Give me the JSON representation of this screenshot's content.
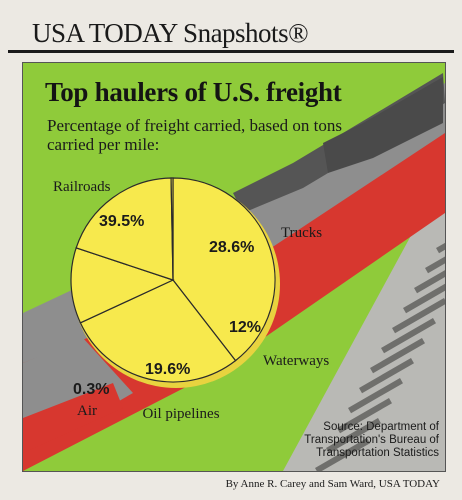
{
  "header": {
    "title": "USA TODAY Snapshots®"
  },
  "chart_data": {
    "type": "pie",
    "title": "Top haulers of U.S. freight",
    "subtitle": "Percentage of freight carried, based on tons carried per mile:",
    "slices": [
      {
        "label": "Railroads",
        "value": 39.5,
        "display": "39.5%"
      },
      {
        "label": "Trucks",
        "value": 28.6,
        "display": "28.6%"
      },
      {
        "label": "Waterways",
        "value": 12,
        "display": "12%"
      },
      {
        "label": "Oil pipelines",
        "value": 19.6,
        "display": "19.6%"
      },
      {
        "label": "Air",
        "value": 0.3,
        "display": "0.3%"
      }
    ],
    "source": "Source: Department of Transportation's Bureau of Transportation Statistics"
  },
  "byline": "By Anne R. Carey and Sam Ward, USA TODAY",
  "colors": {
    "green": "#8fcb3a",
    "pie": "#f7e94d",
    "red": "#d7372f",
    "gray": "#8e8e8e"
  }
}
